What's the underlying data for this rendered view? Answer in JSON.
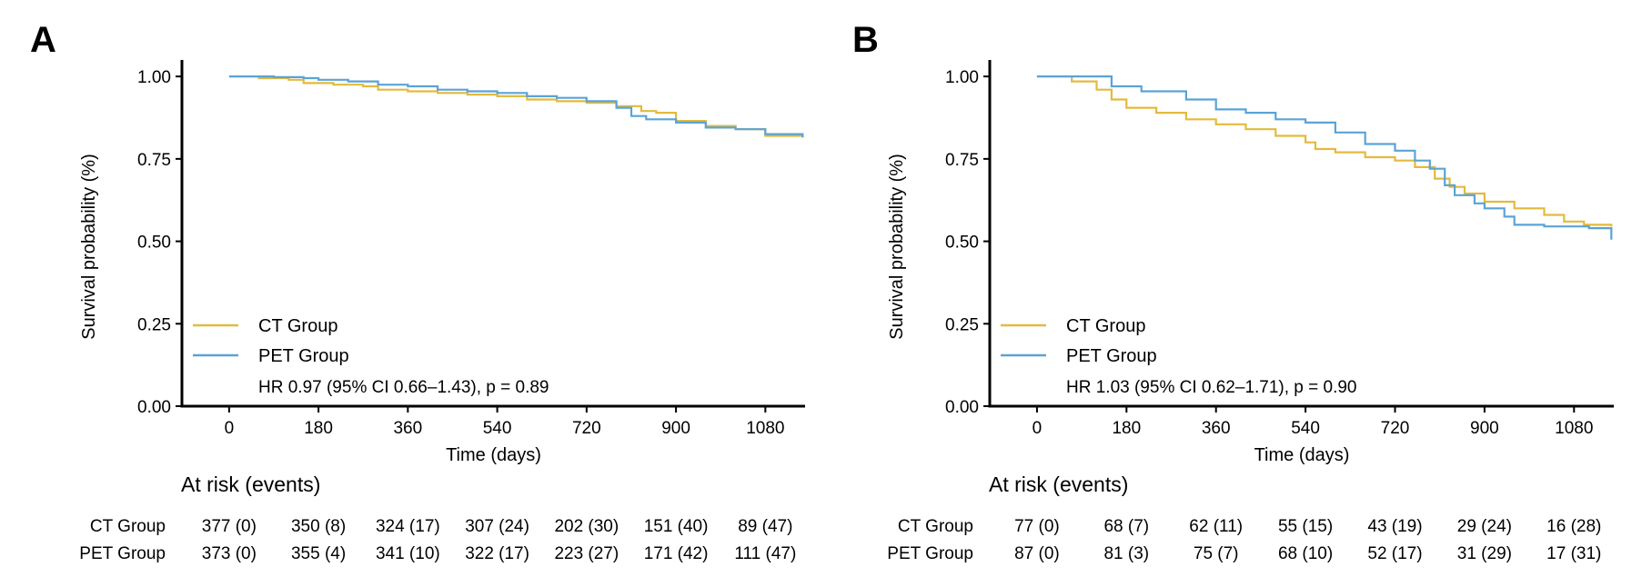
{
  "chart_data": [
    {
      "type": "line",
      "panel_label": "A",
      "xlabel": "Time (days)",
      "ylabel": "Survival probability (%)",
      "xlim": [
        -95,
        1160
      ],
      "ylim": [
        0,
        1.05
      ],
      "xticks": [
        0,
        180,
        360,
        540,
        720,
        900,
        1080
      ],
      "yticks": [
        "0.00",
        "0.25",
        "0.50",
        "0.75",
        "1.00"
      ],
      "grid": false,
      "legend_position": "bottom-left",
      "series": [
        {
          "name": "CT Group",
          "color": "#E3BA3F",
          "points": [
            [
              0,
              1.0
            ],
            [
              60,
              0.995
            ],
            [
              120,
              0.99
            ],
            [
              150,
              0.98
            ],
            [
              210,
              0.975
            ],
            [
              270,
              0.97
            ],
            [
              300,
              0.96
            ],
            [
              360,
              0.955
            ],
            [
              420,
              0.95
            ],
            [
              480,
              0.945
            ],
            [
              540,
              0.94
            ],
            [
              600,
              0.93
            ],
            [
              660,
              0.925
            ],
            [
              720,
              0.92
            ],
            [
              780,
              0.91
            ],
            [
              830,
              0.895
            ],
            [
              860,
              0.89
            ],
            [
              900,
              0.865
            ],
            [
              960,
              0.85
            ],
            [
              1020,
              0.84
            ],
            [
              1080,
              0.82
            ],
            [
              1155,
              0.815
            ]
          ]
        },
        {
          "name": "PET Group",
          "color": "#5BA3D6",
          "points": [
            [
              0,
              1.0
            ],
            [
              90,
              0.998
            ],
            [
              150,
              0.995
            ],
            [
              180,
              0.99
            ],
            [
              240,
              0.985
            ],
            [
              300,
              0.975
            ],
            [
              360,
              0.97
            ],
            [
              420,
              0.96
            ],
            [
              480,
              0.955
            ],
            [
              540,
              0.95
            ],
            [
              600,
              0.94
            ],
            [
              660,
              0.935
            ],
            [
              720,
              0.925
            ],
            [
              780,
              0.905
            ],
            [
              810,
              0.88
            ],
            [
              840,
              0.87
            ],
            [
              900,
              0.86
            ],
            [
              960,
              0.845
            ],
            [
              1020,
              0.84
            ],
            [
              1080,
              0.825
            ],
            [
              1155,
              0.815
            ]
          ]
        }
      ],
      "hr_text": "HR 0.97 (95% CI 0.66–1.43), p = 0.89",
      "risk_table": {
        "title": "At risk (events)",
        "rows": [
          {
            "group": "CT Group",
            "cells": [
              "377 (0)",
              "350 (8)",
              "324 (17)",
              "307 (24)",
              "202 (30)",
              "151 (40)",
              "89 (47)"
            ]
          },
          {
            "group": "PET Group",
            "cells": [
              "373 (0)",
              "355 (4)",
              "341 (10)",
              "322 (17)",
              "223 (27)",
              "171 (42)",
              "111 (47)"
            ]
          }
        ]
      }
    },
    {
      "type": "line",
      "panel_label": "B",
      "xlabel": "Time (days)",
      "ylabel": "Survival probability (%)",
      "xlim": [
        -95,
        1160
      ],
      "ylim": [
        0,
        1.05
      ],
      "xticks": [
        0,
        180,
        360,
        540,
        720,
        900,
        1080
      ],
      "yticks": [
        "0.00",
        "0.25",
        "0.50",
        "0.75",
        "1.00"
      ],
      "grid": false,
      "legend_position": "bottom-left",
      "series": [
        {
          "name": "CT Group",
          "color": "#E3BA3F",
          "points": [
            [
              0,
              1.0
            ],
            [
              70,
              0.985
            ],
            [
              120,
              0.96
            ],
            [
              150,
              0.93
            ],
            [
              180,
              0.905
            ],
            [
              240,
              0.89
            ],
            [
              300,
              0.87
            ],
            [
              360,
              0.855
            ],
            [
              420,
              0.84
            ],
            [
              480,
              0.82
            ],
            [
              540,
              0.8
            ],
            [
              560,
              0.78
            ],
            [
              600,
              0.77
            ],
            [
              660,
              0.755
            ],
            [
              720,
              0.745
            ],
            [
              760,
              0.725
            ],
            [
              800,
              0.69
            ],
            [
              830,
              0.665
            ],
            [
              860,
              0.645
            ],
            [
              900,
              0.62
            ],
            [
              960,
              0.6
            ],
            [
              1020,
              0.58
            ],
            [
              1060,
              0.56
            ],
            [
              1100,
              0.55
            ],
            [
              1155,
              0.545
            ]
          ]
        },
        {
          "name": "PET Group",
          "color": "#5BA3D6",
          "points": [
            [
              0,
              1.0
            ],
            [
              150,
              0.97
            ],
            [
              210,
              0.955
            ],
            [
              300,
              0.93
            ],
            [
              360,
              0.9
            ],
            [
              420,
              0.89
            ],
            [
              480,
              0.87
            ],
            [
              540,
              0.86
            ],
            [
              600,
              0.83
            ],
            [
              660,
              0.795
            ],
            [
              720,
              0.775
            ],
            [
              760,
              0.745
            ],
            [
              790,
              0.72
            ],
            [
              820,
              0.67
            ],
            [
              840,
              0.64
            ],
            [
              880,
              0.615
            ],
            [
              900,
              0.6
            ],
            [
              940,
              0.575
            ],
            [
              960,
              0.55
            ],
            [
              1020,
              0.545
            ],
            [
              1110,
              0.54
            ],
            [
              1155,
              0.505
            ]
          ]
        }
      ],
      "hr_text": "HR 1.03 (95% CI 0.62–1.71), p = 0.90",
      "risk_table": {
        "title": "At risk (events)",
        "rows": [
          {
            "group": "CT Group",
            "cells": [
              "77 (0)",
              "68 (7)",
              "62 (11)",
              "55 (15)",
              "43 (19)",
              "29 (24)",
              "16 (28)"
            ]
          },
          {
            "group": "PET Group",
            "cells": [
              "87 (0)",
              "81 (3)",
              "75 (7)",
              "68 (10)",
              "52 (17)",
              "31 (29)",
              "17 (31)"
            ]
          }
        ]
      }
    }
  ]
}
